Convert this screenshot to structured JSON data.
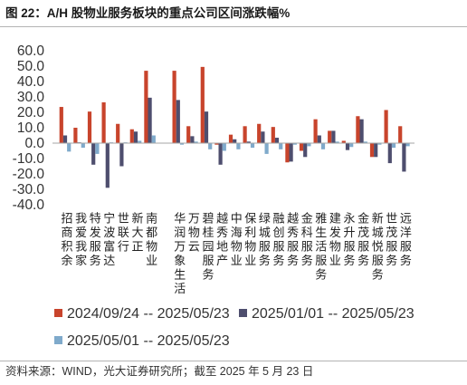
{
  "chart_data": {
    "type": "bar",
    "title": "图 22：A/H 股物业服务板块的重点公司区间涨跌幅%",
    "ylim": [
      -40,
      60
    ],
    "yticks": [
      60,
      50,
      40,
      30,
      20,
      10,
      0,
      -10,
      -20,
      -30,
      -40
    ],
    "ytick_labels": [
      "60.0",
      "50.0",
      "40.0",
      "30.0",
      "20.0",
      "10.0",
      "0.0",
      "-10.0",
      "-20.0",
      "-30.0",
      "-40.0"
    ],
    "grid": false,
    "legend_position": "bottom",
    "categories": [
      "招商积余",
      "我爱我家",
      "特发服务",
      "宁波富达",
      "世联行",
      "新大正",
      "南都物业",
      "华润万象生活",
      "万物云",
      "碧桂园服务",
      "越秀地产",
      "中海物业",
      "保利物业",
      "绿城服务",
      "融创服务",
      "越秀服务",
      "金科服务",
      "雅生活服务",
      "建发物业",
      "永升服务",
      "金茂服务",
      "新城悦服务",
      "世茂服务",
      "远洋服务"
    ],
    "series": [
      {
        "name": "2024/09/24 -- 2025/05/23",
        "color": "#C8442C",
        "values": [
          23.5,
          10.0,
          20.5,
          26.5,
          12.5,
          9.0,
          47.0,
          47.0,
          11.0,
          49.5,
          -1.0,
          5.5,
          11.0,
          12.5,
          10.5,
          -12.5,
          -5.0,
          15.5,
          8.0,
          1.5,
          17.5,
          -9.0,
          21.5,
          11.0
        ]
      },
      {
        "name": "2025/01/01 -- 2025/05/23",
        "color": "#4E4E6E",
        "values": [
          5.0,
          0.5,
          -14.0,
          -29.0,
          -15.0,
          7.5,
          29.5,
          28.0,
          4.5,
          20.5,
          -14.0,
          2.5,
          1.0,
          7.5,
          3.5,
          -12.0,
          -9.0,
          5.0,
          8.0,
          -4.5,
          15.5,
          -9.0,
          -13.0,
          -18.5
        ]
      },
      {
        "name": "2025/05/01 -- 2025/05/23",
        "color": "#7FAACB",
        "values": [
          -5.5,
          -3.0,
          -7.0,
          0.5,
          0.5,
          1.5,
          5.0,
          -1.0,
          1.0,
          -4.0,
          -5.0,
          -4.0,
          -3.0,
          -7.0,
          -4.0,
          -1.0,
          -2.0,
          -4.0,
          1.0,
          -2.5,
          1.0,
          -1.0,
          -3.0,
          -2.0
        ]
      }
    ]
  },
  "source": "资料来源：WIND，光大证券研究所；截至 2025 年 5 月 23 日"
}
